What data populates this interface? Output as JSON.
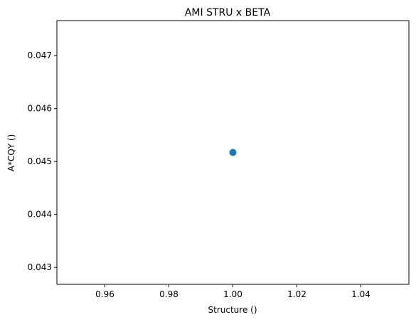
{
  "chart_data": {
    "type": "scatter",
    "title": "AMI STRU x BETA",
    "xlabel": "Structure ()",
    "ylabel": "A*CQY ()",
    "xlim": [
      0.945,
      1.055
    ],
    "ylim": [
      0.04268,
      0.04766
    ],
    "xticks": [
      {
        "value": 0.96,
        "label": "0.96"
      },
      {
        "value": 0.98,
        "label": "0.98"
      },
      {
        "value": 1.0,
        "label": "1.00"
      },
      {
        "value": 1.02,
        "label": "1.02"
      },
      {
        "value": 1.04,
        "label": "1.04"
      }
    ],
    "yticks": [
      {
        "value": 0.043,
        "label": "0.043"
      },
      {
        "value": 0.044,
        "label": "0.044"
      },
      {
        "value": 0.045,
        "label": "0.045"
      },
      {
        "value": 0.046,
        "label": "0.046"
      },
      {
        "value": 0.047,
        "label": "0.047"
      }
    ],
    "grid": false,
    "series": [
      {
        "color": "#1f77b4",
        "points": [
          {
            "x": 1.0,
            "y": 0.04517
          }
        ]
      }
    ]
  }
}
